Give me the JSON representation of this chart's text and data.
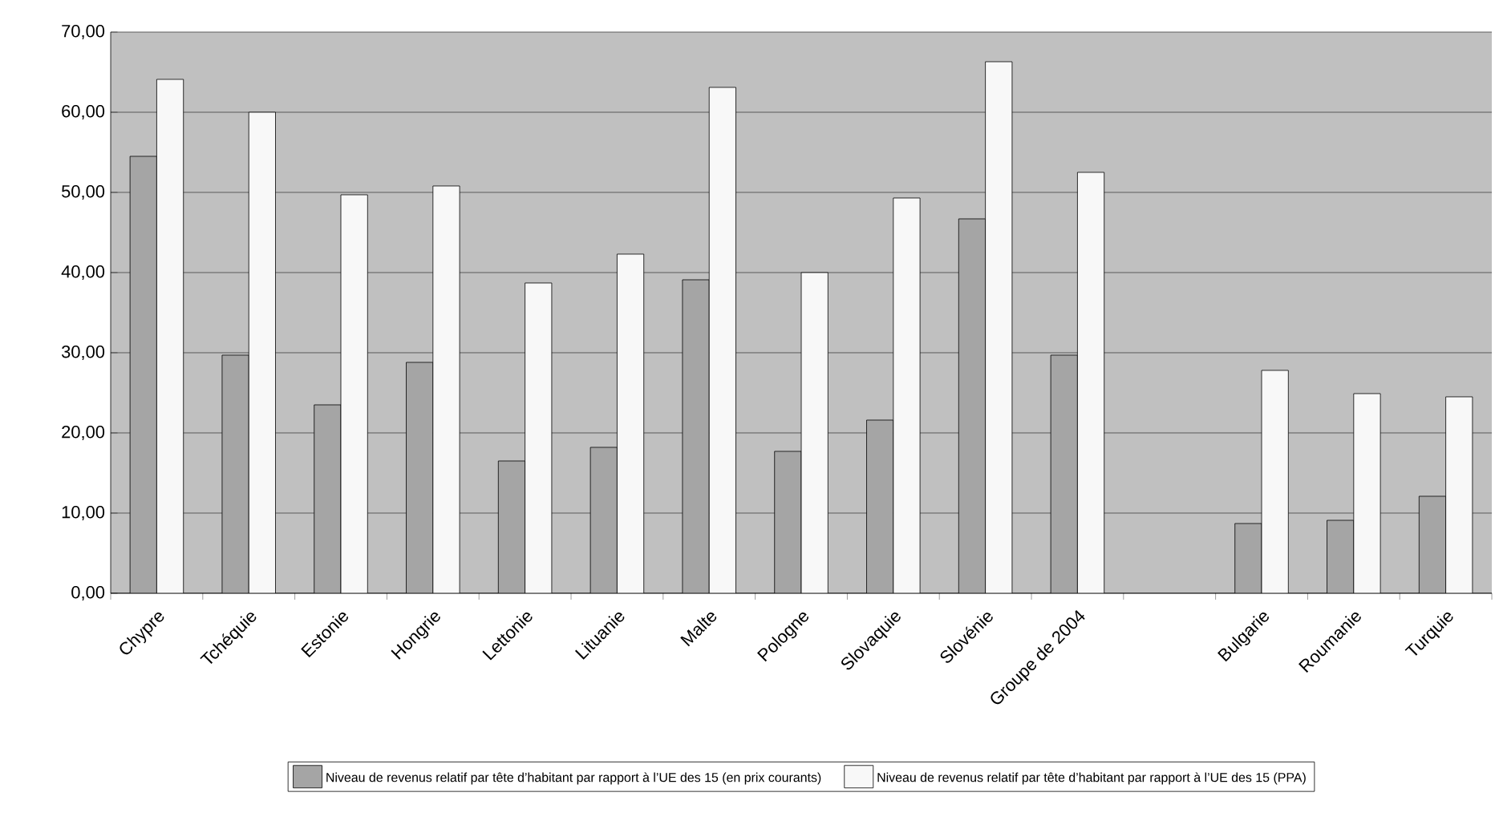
{
  "chart_data": {
    "type": "bar",
    "categories": [
      "Chypre",
      "Tchéquie",
      "Estonie",
      "Hongrie",
      "Lettonie",
      "Lituanie",
      "Malte",
      "Pologne",
      "Slovaquie",
      "Slovénie",
      "Groupe de 2004",
      null,
      "Bulgarie",
      "Roumanie",
      "Turquie"
    ],
    "series": [
      {
        "name": "Niveau de revenus relatif par tête d’habitant par rapport à l’UE des 15 (en prix courants)",
        "color": "#a5a5a5",
        "values": [
          54.5,
          29.7,
          23.5,
          28.8,
          16.5,
          18.2,
          39.1,
          17.7,
          21.6,
          46.7,
          29.7,
          null,
          8.7,
          9.1,
          12.1
        ]
      },
      {
        "name": "Niveau de revenus relatif par tête d’habitant par rapport à l’UE des 15 (PPA)",
        "color": "#f8f8f8",
        "values": [
          64.1,
          60.0,
          49.7,
          50.8,
          38.7,
          42.3,
          63.1,
          40.0,
          49.3,
          66.3,
          52.5,
          null,
          27.8,
          24.9,
          24.5
        ]
      }
    ],
    "ylim": [
      0,
      70
    ],
    "yticks": [
      {
        "value": 0,
        "label": "0,00"
      },
      {
        "value": 10,
        "label": "10,00"
      },
      {
        "value": 20,
        "label": "20,00"
      },
      {
        "value": 30,
        "label": "30,00"
      },
      {
        "value": 40,
        "label": "40,00"
      },
      {
        "value": 50,
        "label": "50,00"
      },
      {
        "value": 60,
        "label": "60,00"
      },
      {
        "value": 70,
        "label": "70,00"
      }
    ],
    "grid": "y",
    "legend": "bottom"
  }
}
